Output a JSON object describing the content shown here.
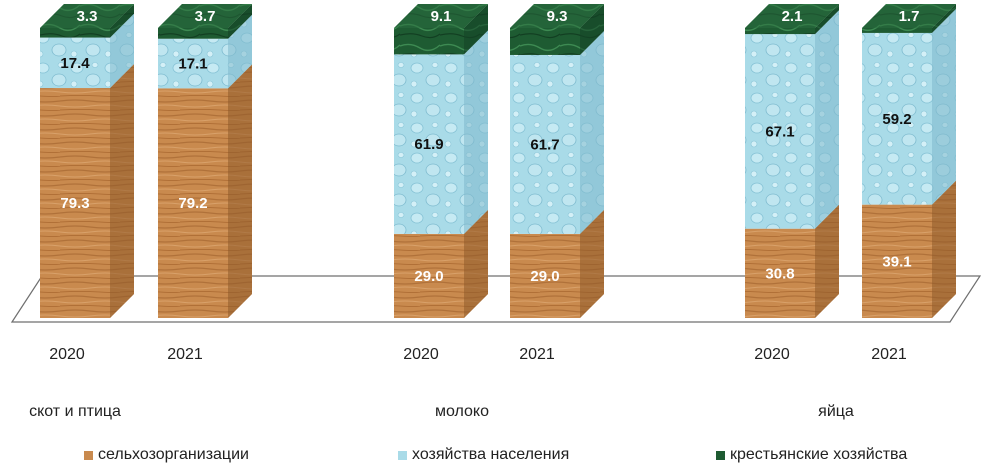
{
  "chart_data": {
    "type": "bar",
    "stacked": true,
    "groups": [
      {
        "name": "скот и птица",
        "years": [
          "2020",
          "2021"
        ]
      },
      {
        "name": "молоко",
        "years": [
          "2020",
          "2021"
        ]
      },
      {
        "name": "яйца",
        "years": [
          "2020",
          "2021"
        ]
      }
    ],
    "series": [
      {
        "name": "сельхозорганизации",
        "color": "#c98a4e",
        "values": [
          [
            79.3,
            79.2
          ],
          [
            29.0,
            29.0
          ],
          [
            30.8,
            39.1
          ]
        ],
        "labels": [
          [
            "79.3",
            "79.2"
          ],
          [
            "29.0",
            "29.0"
          ],
          [
            "30.8",
            "39.1"
          ]
        ]
      },
      {
        "name": "хозяйства населения",
        "color": "#a9dbe8",
        "values": [
          [
            17.4,
            17.1
          ],
          [
            61.9,
            61.7
          ],
          [
            67.1,
            59.2
          ]
        ],
        "labels": [
          [
            "17.4",
            "17.1"
          ],
          [
            "61.9",
            "61.7"
          ],
          [
            "67.1",
            "59.2"
          ]
        ]
      },
      {
        "name": "крестьянские хозяйства",
        "color": "#1e5b32",
        "values": [
          [
            3.3,
            3.7
          ],
          [
            9.1,
            9.3
          ],
          [
            2.1,
            1.7
          ]
        ],
        "labels": [
          [
            "3.3",
            "3.7"
          ],
          [
            "9.1",
            "9.3"
          ],
          [
            "2.1",
            "1.7"
          ]
        ]
      }
    ],
    "ylim": [
      0,
      100
    ],
    "legend_position": "bottom",
    "grid": false
  }
}
